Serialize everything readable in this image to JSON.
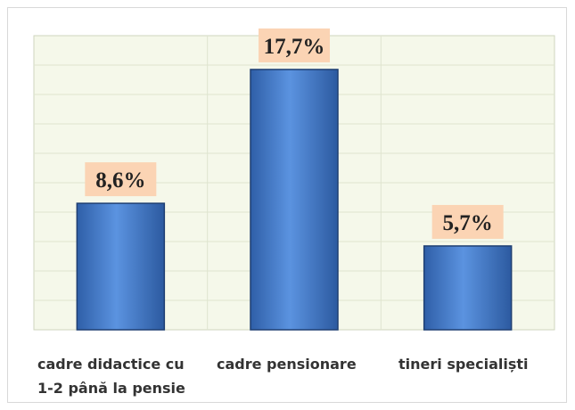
{
  "chart_data": {
    "type": "bar",
    "categories": [
      "cadre didactice cu 1-2 până la pensie",
      "cadre pensionare",
      "tineri specialiști"
    ],
    "values": [
      8.6,
      17.7,
      5.7
    ],
    "value_labels": [
      "8,6%",
      "17,7%",
      "5,7%"
    ],
    "color": "#4a7fc8",
    "ylim": [
      0,
      20
    ]
  }
}
